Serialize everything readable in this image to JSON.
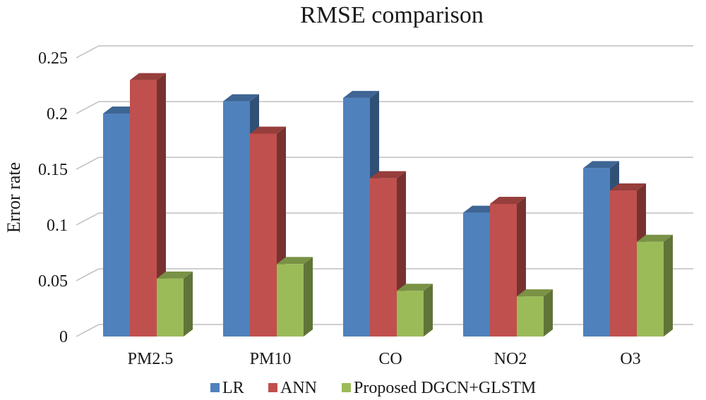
{
  "chart_data": {
    "type": "bar",
    "title": "RMSE comparison",
    "xlabel": "",
    "ylabel": "Error rate",
    "ylim": [
      0,
      0.25
    ],
    "yticks": [
      "0",
      "0.05",
      "0.1",
      "0.15",
      "0.2",
      "0.25"
    ],
    "yticks_values": [
      0,
      0.05,
      0.1,
      0.15,
      0.2,
      0.25
    ],
    "grid": true,
    "legend_position": "bottom",
    "categories": [
      "PM2.5",
      "PM10",
      "CO",
      "NO2",
      "O3"
    ],
    "series": [
      {
        "name": "LR",
        "color": "#4f81bd",
        "values": [
          0.2,
          0.211,
          0.214,
          0.111,
          0.151
        ]
      },
      {
        "name": "ANN",
        "color": "#c0504d",
        "values": [
          0.23,
          0.182,
          0.142,
          0.119,
          0.131
        ]
      },
      {
        "name": "Proposed DGCN+GLSTM",
        "color": "#9bbb59",
        "values": [
          0.052,
          0.065,
          0.041,
          0.036,
          0.085
        ]
      }
    ]
  }
}
